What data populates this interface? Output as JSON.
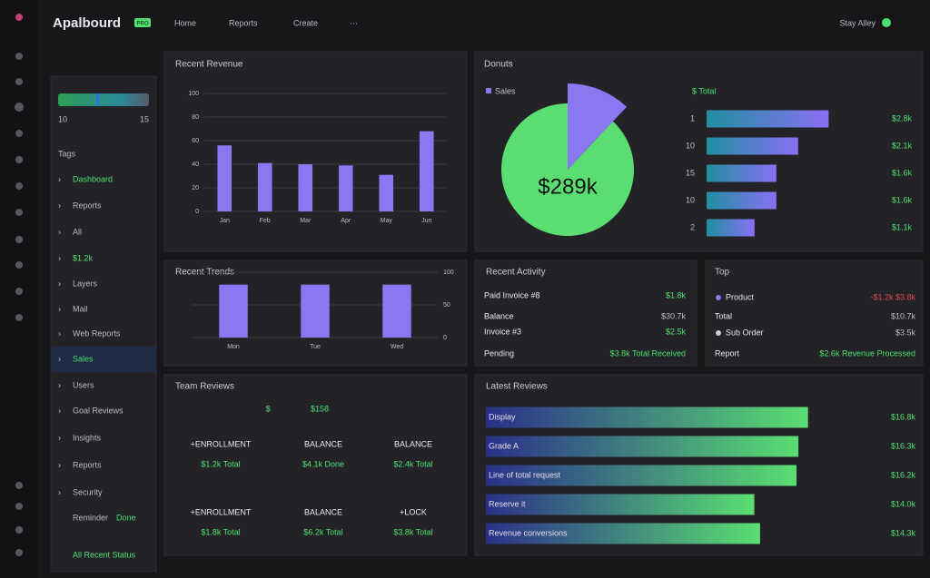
{
  "app": {
    "title": "Apalbourd",
    "badge": "PRO",
    "nav": [
      "Home",
      "Reports",
      "Create",
      "···"
    ],
    "user": "Stay Alley"
  },
  "sidebar": {
    "progress": {
      "value": 60,
      "min_label": "10",
      "max_label": "15"
    },
    "heading": "Tags",
    "items": [
      "Dashboard",
      "Reports",
      "All",
      "$1.2k",
      "Layers",
      "Mail",
      "Web Reports",
      "Sales",
      "Users",
      "Goal Reviews",
      "Insights",
      "Reports",
      "Security"
    ],
    "footer": [
      "Reminder",
      "Done",
      "All Recent Status"
    ]
  },
  "revenue": {
    "title": "Recent Revenue",
    "categories": [
      "Jan",
      "Feb",
      "Mar",
      "Apr",
      "May",
      "Jun"
    ],
    "values": [
      56,
      41,
      40,
      39,
      31,
      68
    ],
    "ylim": [
      0,
      100
    ],
    "yticks": [
      0,
      20,
      40,
      60,
      80,
      100
    ],
    "color": "#8a77f2"
  },
  "sales": {
    "title": "Donuts",
    "legend": "Sales",
    "center_label": "$289k",
    "slices": [
      12,
      88
    ],
    "colors": [
      "#8a77f2",
      "#5ade72"
    ],
    "bars_title": "$ Total",
    "categories": [
      "1",
      "10",
      "15",
      "10",
      "2"
    ],
    "values": [
      2.8,
      2.1,
      1.6,
      1.6,
      1.1
    ],
    "value_labels": [
      "$2.8k",
      "$2.1k",
      "$1.6k",
      "$1.6k",
      "$1.1k"
    ],
    "xlim": [
      0,
      3
    ]
  },
  "trends": {
    "title": "Recent Trends",
    "categories": [
      "Mon",
      "Tue",
      "Wed"
    ],
    "values": [
      81,
      81,
      81
    ],
    "ylim": [
      0,
      100
    ],
    "yticks": [
      0,
      50,
      100
    ],
    "color": "#8a77f2"
  },
  "activity": {
    "title": "Recent Activity",
    "rows": [
      [
        "Paid Invoice #8",
        "$1.8k"
      ],
      [
        "Balance",
        "$30.7k"
      ],
      [
        "Invoice #3",
        "$2.5k"
      ],
      [
        "Pending",
        "$3.8k Total Received"
      ]
    ]
  },
  "top": {
    "title": "Top",
    "rows": [
      [
        "Product",
        "-$1.2k $3.8k"
      ],
      [
        "Total",
        "$10.7k"
      ],
      [
        "Sub Order",
        "$3.5k"
      ],
      [
        "Report",
        "$2.6k Revenue Processed"
      ]
    ]
  },
  "team": {
    "title": "Team Reviews",
    "header": [
      "$",
      "$158"
    ],
    "stats": [
      [
        "+ENROLLMENT",
        "$1.2k Total"
      ],
      [
        "BALANCE",
        "$4.1k Done"
      ],
      [
        "BALANCE",
        "$2.4k Total"
      ],
      [
        "+ENROLLMENT",
        "$1.8k Total"
      ],
      [
        "BALANCE",
        "$6.2k Total"
      ],
      [
        "+LOCK",
        "$3.8k Total"
      ]
    ]
  },
  "reviews": {
    "title": "Latest Reviews",
    "categories": [
      "Display",
      "Grade A",
      "Line of total request",
      "Reserve it",
      "Revenue conversions"
    ],
    "values": [
      16.8,
      16.3,
      16.2,
      14.0,
      14.3
    ],
    "value_labels": [
      "$16.8k",
      "$16.3k",
      "$16.2k",
      "$14.0k",
      "$14.3k"
    ],
    "xlim": [
      0,
      18
    ]
  }
}
